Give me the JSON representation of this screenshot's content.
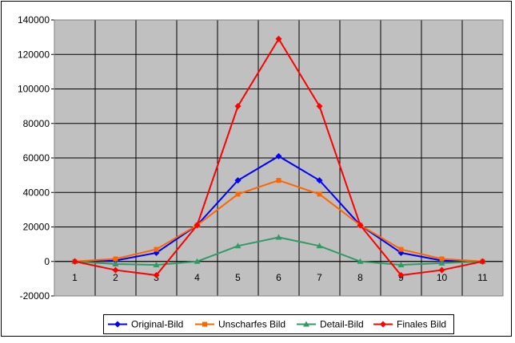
{
  "chart_data": {
    "type": "line",
    "x": [
      "1",
      "2",
      "3",
      "4",
      "5",
      "6",
      "7",
      "8",
      "9",
      "10",
      "11"
    ],
    "ylim": [
      -20000,
      140000
    ],
    "yticks": [
      -20000,
      0,
      20000,
      40000,
      60000,
      80000,
      100000,
      120000,
      140000
    ],
    "ytick_labels": [
      "-20000",
      "0",
      "20000",
      "40000",
      "60000",
      "80000",
      "100000",
      "120000",
      "140000"
    ],
    "grid": true,
    "legend_position": "bottom",
    "plot_background": "#c0c0c0",
    "series": [
      {
        "name": "Original-Bild",
        "color": "#0000ff",
        "marker": "diamond",
        "values": [
          0,
          500,
          5000,
          21000,
          47000,
          61000,
          47000,
          21000,
          5000,
          500,
          0
        ]
      },
      {
        "name": "Unscharfes Bild",
        "color": "#ff6600",
        "marker": "square",
        "values": [
          0,
          1500,
          7000,
          21000,
          39000,
          47000,
          39000,
          21000,
          7000,
          1500,
          0
        ]
      },
      {
        "name": "Detail-Bild",
        "color": "#339966",
        "marker": "triangle",
        "values": [
          0,
          -1500,
          -2000,
          0,
          9000,
          14000,
          9000,
          0,
          -2000,
          -1000,
          0
        ]
      },
      {
        "name": "Finales Bild",
        "color": "#ff0000",
        "marker": "diamond",
        "values": [
          0,
          -5000,
          -8000,
          21000,
          90000,
          129000,
          90000,
          21000,
          -8000,
          -5000,
          0
        ]
      }
    ]
  }
}
